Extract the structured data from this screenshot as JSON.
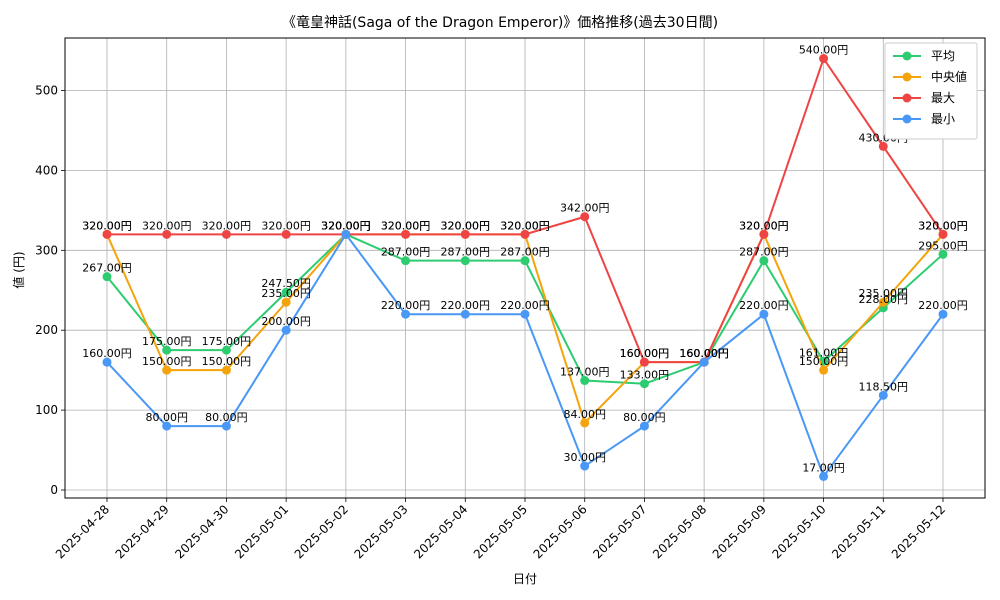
{
  "chart_data": {
    "type": "line",
    "title": "《竜皇神話(Saga of the Dragon Emperor)》価格推移(過去30日間)",
    "xlabel": "日付",
    "ylabel": "値 (円)",
    "ylim": [
      0,
      560
    ],
    "yticks": [
      0,
      100,
      200,
      300,
      400,
      500
    ],
    "grid": true,
    "legend_position": "top-right",
    "categories": [
      "2025-04-28",
      "2025-04-29",
      "2025-04-30",
      "2025-05-01",
      "2025-05-02",
      "2025-05-03",
      "2025-05-04",
      "2025-05-05",
      "2025-05-06",
      "2025-05-07",
      "2025-05-08",
      "2025-05-09",
      "2025-05-10",
      "2025-05-11",
      "2025-05-12"
    ],
    "series": [
      {
        "name": "平均",
        "color": "#2ecc71",
        "values": [
          267,
          175,
          175,
          247.5,
          320,
          287,
          287,
          287,
          137,
          133,
          160,
          287,
          161,
          228,
          295
        ],
        "labels": [
          "267.00円",
          "175.00円",
          "175.00円",
          "247.50円",
          "320.00円",
          "287.00円",
          "287.00円",
          "287.00円",
          "137.00円",
          "133.00円",
          "160.00円",
          "287.00円",
          "161.00円",
          "228.00円",
          "295.00円"
        ]
      },
      {
        "name": "中央値",
        "color": "#f5a30a",
        "values": [
          320,
          150,
          150,
          235,
          320,
          320,
          320,
          320,
          84,
          160,
          160,
          320,
          150,
          235,
          320
        ],
        "labels": [
          "320.00円",
          "150.00円",
          "150.00円",
          "235.00円",
          "320.00円",
          "320.00円",
          "320.00円",
          "320.00円",
          "84.00円",
          "160.00円",
          "160.00円",
          "320.00円",
          "150.00円",
          "235.00円",
          "320.00円"
        ]
      },
      {
        "name": "最大",
        "color": "#ef4444",
        "values": [
          320,
          320,
          320,
          320,
          320,
          320,
          320,
          320,
          342,
          160,
          160,
          320,
          540,
          430,
          320
        ],
        "labels": [
          "320.00円",
          "320.00円",
          "320.00円",
          "320.00円",
          "320.00円",
          "320.00円",
          "320.00円",
          "320.00円",
          "342.00円",
          "160.00円",
          "160.00円",
          "320.00円",
          "540.00円",
          "430.00円",
          "320.00円"
        ]
      },
      {
        "name": "最小",
        "color": "#4a98f5",
        "values": [
          160,
          80,
          80,
          200,
          320,
          220,
          220,
          220,
          30,
          80,
          160,
          220,
          17,
          118.5,
          220
        ],
        "labels": [
          "160.00円",
          "80.00円",
          "80.00円",
          "200.00円",
          "320.00円",
          "220.00円",
          "220.00円",
          "220.00円",
          "30.00円",
          "80.00円",
          "160.00円",
          "220.00円",
          "17.00円",
          "118.50円",
          "220.00円"
        ]
      }
    ]
  }
}
